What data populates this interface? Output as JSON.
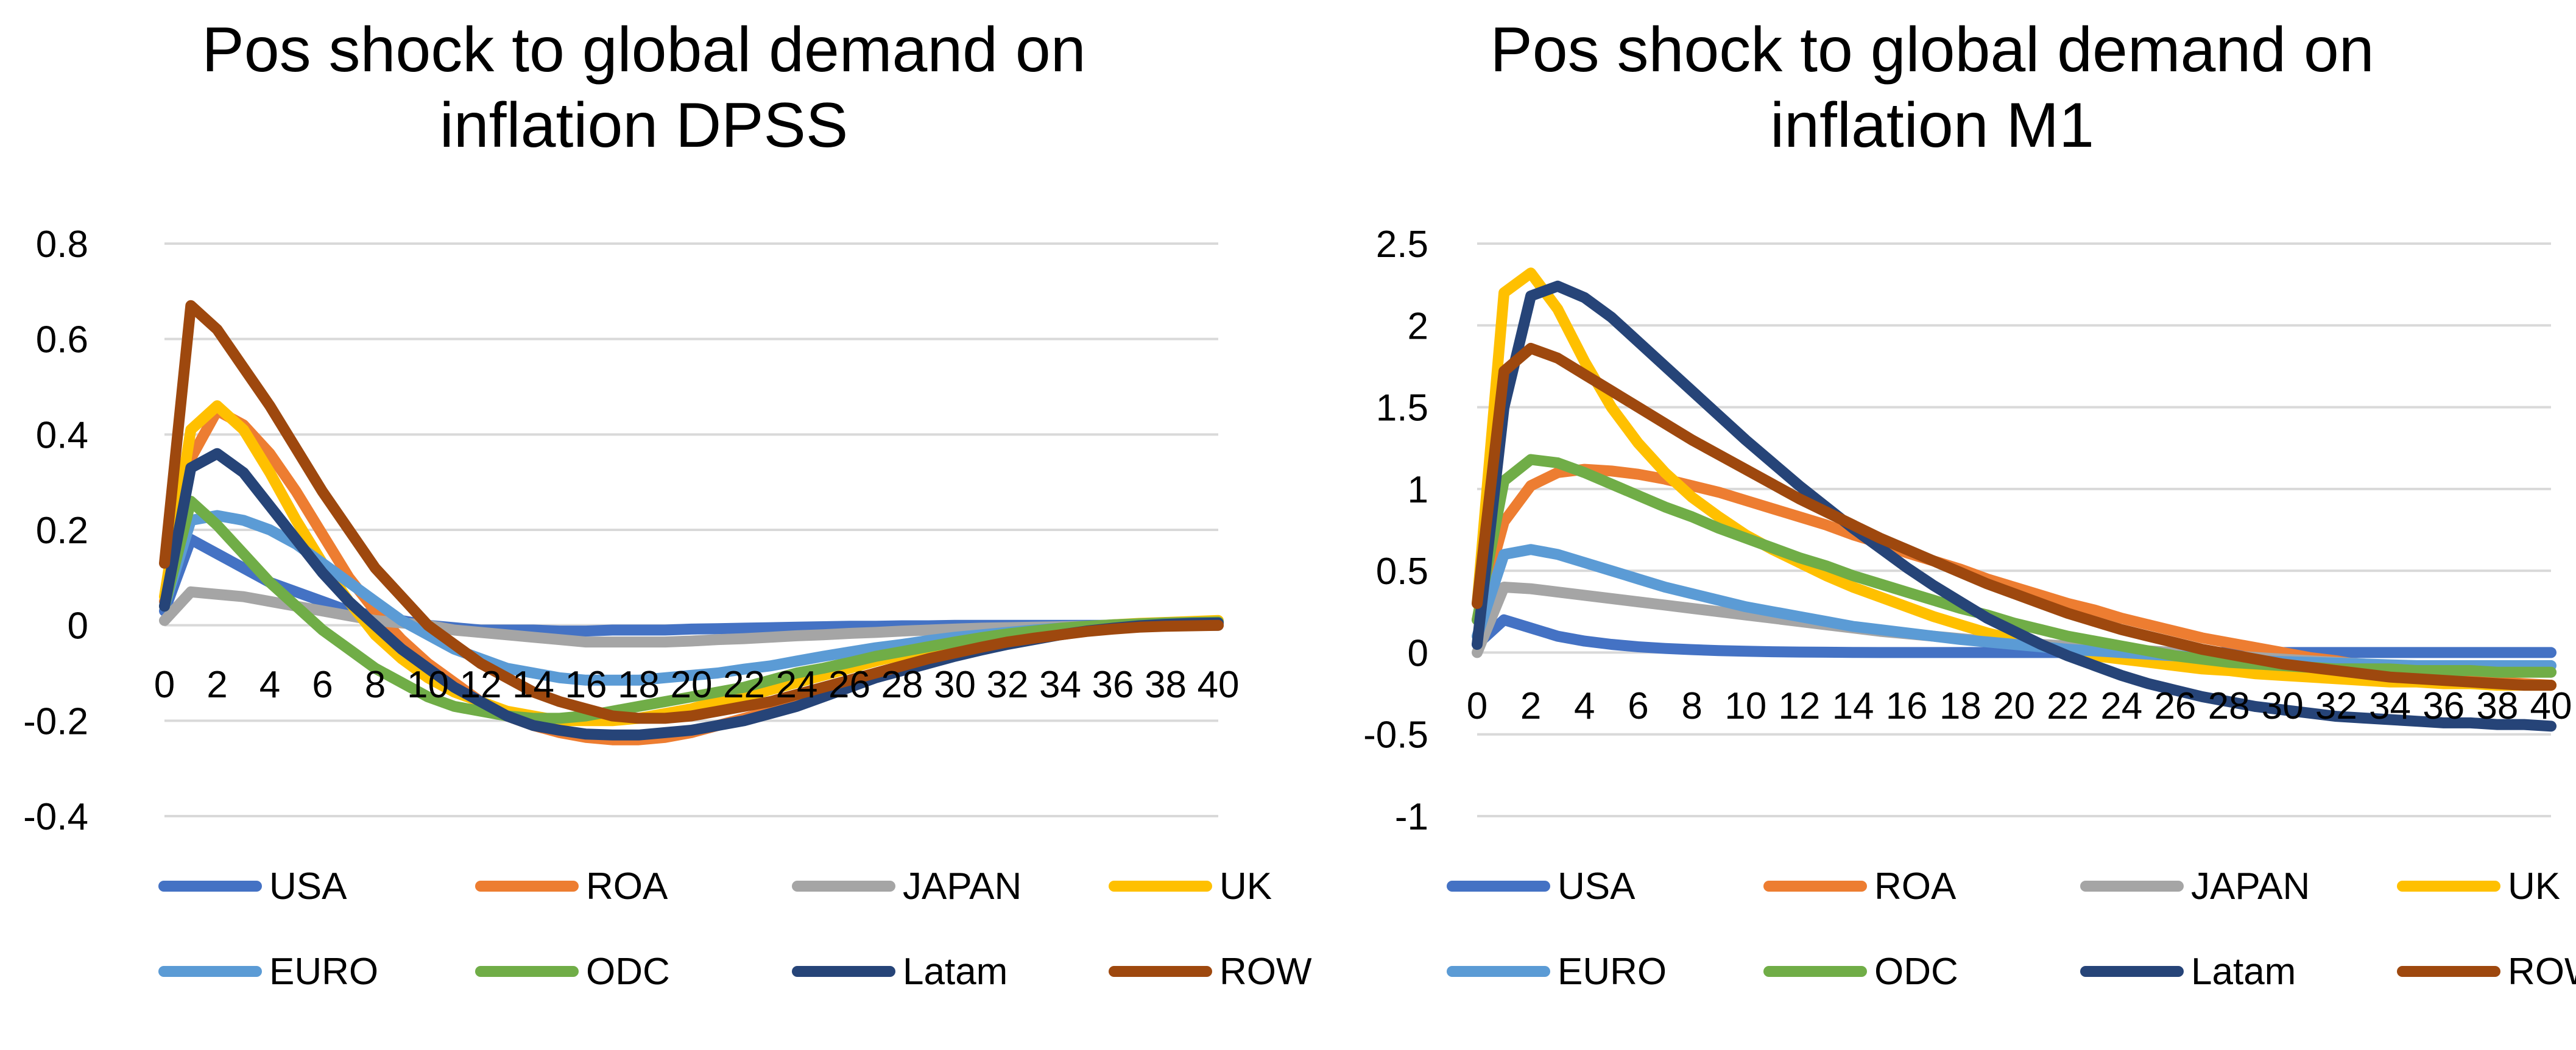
{
  "chart_data": [
    {
      "type": "line",
      "title_lines": [
        "Pos shock to global demand on",
        "inflation DPSS"
      ],
      "x": [
        0,
        1,
        2,
        3,
        4,
        5,
        6,
        7,
        8,
        9,
        10,
        11,
        12,
        13,
        14,
        15,
        16,
        17,
        18,
        19,
        20,
        21,
        22,
        23,
        24,
        25,
        26,
        27,
        28,
        29,
        30,
        31,
        32,
        33,
        34,
        35,
        36,
        37,
        38,
        39,
        40
      ],
      "x_tick_labels": [
        "0",
        "2",
        "4",
        "6",
        "8",
        "10",
        "12",
        "14",
        "16",
        "18",
        "20",
        "22",
        "24",
        "26",
        "28",
        "30",
        "32",
        "34",
        "36",
        "38",
        "40"
      ],
      "y_tick_labels": [
        "0.8",
        "0.6",
        "0.4",
        "0.2",
        "0",
        "-0.2",
        "-0.4"
      ],
      "ylim": [
        -0.4,
        0.8
      ],
      "y_step": 0.2,
      "xlabel": "",
      "ylabel": "",
      "grid": true,
      "legend_position": "bottom",
      "series": [
        {
          "name": "USA",
          "color": "#4472C4",
          "values": [
            0.03,
            0.18,
            0.15,
            0.12,
            0.09,
            0.07,
            0.05,
            0.03,
            0.02,
            0.01,
            0,
            -0.005,
            -0.01,
            -0.01,
            -0.01,
            -0.012,
            -0.012,
            -0.01,
            -0.01,
            -0.01,
            -0.008,
            -0.007,
            -0.006,
            -0.005,
            -0.004,
            -0.003,
            -0.002,
            -0.002,
            -0.001,
            -0.001,
            0,
            0,
            0,
            0,
            0,
            0,
            0,
            0,
            0,
            0,
            0
          ]
        },
        {
          "name": "ROA",
          "color": "#ED7D31",
          "values": [
            0.05,
            0.35,
            0.45,
            0.42,
            0.36,
            0.28,
            0.19,
            0.1,
            0.03,
            -0.03,
            -0.08,
            -0.12,
            -0.16,
            -0.19,
            -0.21,
            -0.225,
            -0.235,
            -0.24,
            -0.24,
            -0.235,
            -0.225,
            -0.21,
            -0.195,
            -0.18,
            -0.16,
            -0.14,
            -0.12,
            -0.1,
            -0.085,
            -0.07,
            -0.055,
            -0.045,
            -0.035,
            -0.025,
            -0.018,
            -0.01,
            -0.005,
            0,
            0.003,
            0.005,
            0.006
          ]
        },
        {
          "name": "JAPAN",
          "color": "#A5A5A5",
          "values": [
            0.01,
            0.07,
            0.065,
            0.06,
            0.05,
            0.04,
            0.03,
            0.02,
            0.01,
            0.005,
            0,
            -0.01,
            -0.015,
            -0.02,
            -0.025,
            -0.03,
            -0.035,
            -0.035,
            -0.035,
            -0.035,
            -0.033,
            -0.03,
            -0.028,
            -0.025,
            -0.022,
            -0.02,
            -0.017,
            -0.015,
            -0.012,
            -0.01,
            -0.008,
            -0.006,
            -0.005,
            -0.004,
            -0.003,
            -0.002,
            -0.001,
            0,
            0,
            0,
            0
          ]
        },
        {
          "name": "UK",
          "color": "#FFC000",
          "values": [
            0.06,
            0.41,
            0.46,
            0.41,
            0.32,
            0.22,
            0.13,
            0.05,
            -0.02,
            -0.07,
            -0.11,
            -0.14,
            -0.16,
            -0.18,
            -0.19,
            -0.2,
            -0.2,
            -0.2,
            -0.195,
            -0.185,
            -0.175,
            -0.16,
            -0.15,
            -0.135,
            -0.12,
            -0.105,
            -0.09,
            -0.075,
            -0.062,
            -0.05,
            -0.04,
            -0.03,
            -0.022,
            -0.015,
            -0.008,
            -0.003,
            0.001,
            0.004,
            0.006,
            0.008,
            0.01
          ]
        },
        {
          "name": "EURO",
          "color": "#5B9BD5",
          "values": [
            0.04,
            0.22,
            0.23,
            0.22,
            0.2,
            0.17,
            0.13,
            0.09,
            0.05,
            0.01,
            -0.02,
            -0.05,
            -0.07,
            -0.09,
            -0.1,
            -0.11,
            -0.115,
            -0.115,
            -0.115,
            -0.11,
            -0.105,
            -0.1,
            -0.092,
            -0.085,
            -0.075,
            -0.065,
            -0.056,
            -0.047,
            -0.04,
            -0.032,
            -0.025,
            -0.02,
            -0.015,
            -0.01,
            -0.006,
            -0.003,
            0,
            0.002,
            0.003,
            0.004,
            0.005
          ]
        },
        {
          "name": "ODC",
          "color": "#70AD47",
          "values": [
            0.04,
            0.26,
            0.21,
            0.15,
            0.09,
            0.04,
            -0.01,
            -0.05,
            -0.09,
            -0.12,
            -0.15,
            -0.17,
            -0.18,
            -0.19,
            -0.195,
            -0.195,
            -0.19,
            -0.18,
            -0.17,
            -0.16,
            -0.15,
            -0.14,
            -0.13,
            -0.115,
            -0.1,
            -0.09,
            -0.078,
            -0.065,
            -0.055,
            -0.045,
            -0.035,
            -0.026,
            -0.018,
            -0.012,
            -0.006,
            -0.002,
            0.001,
            0.003,
            0.005,
            0.006,
            0.007
          ]
        },
        {
          "name": "Latam",
          "color": "#264478",
          "values": [
            0.04,
            0.33,
            0.36,
            0.32,
            0.25,
            0.18,
            0.11,
            0.05,
            0,
            -0.05,
            -0.09,
            -0.13,
            -0.16,
            -0.19,
            -0.21,
            -0.22,
            -0.228,
            -0.23,
            -0.23,
            -0.225,
            -0.22,
            -0.21,
            -0.2,
            -0.185,
            -0.17,
            -0.15,
            -0.13,
            -0.11,
            -0.095,
            -0.08,
            -0.065,
            -0.052,
            -0.04,
            -0.03,
            -0.02,
            -0.012,
            -0.006,
            -0.001,
            0.002,
            0.004,
            0.005
          ]
        },
        {
          "name": "ROW",
          "color": "#9E480E",
          "values": [
            0.13,
            0.67,
            0.62,
            0.54,
            0.46,
            0.37,
            0.28,
            0.2,
            0.12,
            0.06,
            0,
            -0.04,
            -0.08,
            -0.11,
            -0.14,
            -0.16,
            -0.175,
            -0.19,
            -0.195,
            -0.195,
            -0.19,
            -0.18,
            -0.17,
            -0.16,
            -0.145,
            -0.13,
            -0.115,
            -0.1,
            -0.085,
            -0.07,
            -0.058,
            -0.046,
            -0.035,
            -0.027,
            -0.02,
            -0.013,
            -0.008,
            -0.004,
            -0.002,
            -0.001,
            0
          ]
        }
      ]
    },
    {
      "type": "line",
      "title_lines": [
        "Pos shock to global demand on",
        "inflation M1"
      ],
      "x": [
        0,
        1,
        2,
        3,
        4,
        5,
        6,
        7,
        8,
        9,
        10,
        11,
        12,
        13,
        14,
        15,
        16,
        17,
        18,
        19,
        20,
        21,
        22,
        23,
        24,
        25,
        26,
        27,
        28,
        29,
        30,
        31,
        32,
        33,
        34,
        35,
        36,
        37,
        38,
        39,
        40
      ],
      "x_tick_labels": [
        "0",
        "2",
        "4",
        "6",
        "8",
        "10",
        "12",
        "14",
        "16",
        "18",
        "20",
        "22",
        "24",
        "26",
        "28",
        "30",
        "32",
        "34",
        "36",
        "38",
        "40"
      ],
      "y_tick_labels": [
        "2.5",
        "2",
        "1.5",
        "1",
        "0.5",
        "0",
        "-0.5",
        "-1"
      ],
      "ylim": [
        -1,
        2.5
      ],
      "y_step": 0.5,
      "xlabel": "",
      "ylabel": "",
      "grid": true,
      "legend_position": "bottom",
      "series": [
        {
          "name": "USA",
          "color": "#4472C4",
          "values": [
            0.05,
            0.2,
            0.15,
            0.1,
            0.07,
            0.05,
            0.035,
            0.025,
            0.018,
            0.012,
            0.008,
            0.005,
            0.003,
            0.002,
            0.001,
            0,
            0,
            0,
            0,
            0,
            0,
            0,
            0,
            0,
            0,
            0,
            0,
            0,
            0,
            0,
            0,
            0,
            0,
            0,
            0,
            0,
            0,
            0,
            0,
            0,
            0
          ]
        },
        {
          "name": "ROA",
          "color": "#ED7D31",
          "values": [
            0.2,
            0.8,
            1.02,
            1.1,
            1.12,
            1.11,
            1.09,
            1.06,
            1.02,
            0.98,
            0.93,
            0.88,
            0.83,
            0.78,
            0.72,
            0.67,
            0.61,
            0.56,
            0.51,
            0.45,
            0.4,
            0.35,
            0.3,
            0.26,
            0.21,
            0.17,
            0.13,
            0.09,
            0.06,
            0.03,
            0,
            -0.03,
            -0.05,
            -0.08,
            -0.1,
            -0.12,
            -0.14,
            -0.16,
            -0.18,
            -0.19,
            -0.2
          ]
        },
        {
          "name": "JAPAN",
          "color": "#A5A5A5",
          "values": [
            0,
            0.4,
            0.39,
            0.37,
            0.35,
            0.33,
            0.31,
            0.29,
            0.27,
            0.25,
            0.23,
            0.21,
            0.19,
            0.17,
            0.15,
            0.13,
            0.115,
            0.1,
            0.085,
            0.07,
            0.06,
            0.05,
            0.04,
            0.03,
            0.02,
            0.01,
            0,
            -0.01,
            -0.02,
            -0.03,
            -0.04,
            -0.05,
            -0.06,
            -0.07,
            -0.08,
            -0.09,
            -0.1,
            -0.1,
            -0.11,
            -0.11,
            -0.12
          ]
        },
        {
          "name": "UK",
          "color": "#FFC000",
          "values": [
            0.3,
            2.2,
            2.32,
            2.1,
            1.78,
            1.5,
            1.28,
            1.1,
            0.95,
            0.83,
            0.72,
            0.63,
            0.55,
            0.47,
            0.4,
            0.34,
            0.28,
            0.22,
            0.17,
            0.12,
            0.08,
            0.04,
            0.01,
            -0.02,
            -0.04,
            -0.06,
            -0.08,
            -0.1,
            -0.11,
            -0.13,
            -0.14,
            -0.15,
            -0.16,
            -0.17,
            -0.18,
            -0.18,
            -0.19,
            -0.19,
            -0.2,
            -0.2,
            -0.2
          ]
        },
        {
          "name": "EURO",
          "color": "#5B9BD5",
          "values": [
            0.1,
            0.6,
            0.63,
            0.6,
            0.55,
            0.5,
            0.45,
            0.4,
            0.36,
            0.32,
            0.28,
            0.25,
            0.22,
            0.19,
            0.16,
            0.14,
            0.12,
            0.1,
            0.08,
            0.065,
            0.05,
            0.035,
            0.02,
            0.01,
            0,
            -0.01,
            -0.02,
            -0.03,
            -0.04,
            -0.05,
            -0.055,
            -0.06,
            -0.065,
            -0.07,
            -0.075,
            -0.08,
            -0.08,
            -0.08,
            -0.08,
            -0.08,
            -0.08
          ]
        },
        {
          "name": "ODC",
          "color": "#70AD47",
          "values": [
            0.2,
            1.05,
            1.18,
            1.16,
            1.1,
            1.03,
            0.96,
            0.89,
            0.83,
            0.76,
            0.7,
            0.64,
            0.58,
            0.53,
            0.47,
            0.42,
            0.37,
            0.32,
            0.27,
            0.23,
            0.18,
            0.14,
            0.1,
            0.07,
            0.04,
            0.01,
            -0.02,
            -0.04,
            -0.06,
            -0.07,
            -0.08,
            -0.09,
            -0.1,
            -0.1,
            -0.1,
            -0.11,
            -0.11,
            -0.11,
            -0.12,
            -0.12,
            -0.12
          ]
        },
        {
          "name": "Latam",
          "color": "#264478",
          "values": [
            0.05,
            1.5,
            2.18,
            2.24,
            2.17,
            2.05,
            1.9,
            1.75,
            1.6,
            1.45,
            1.3,
            1.16,
            1.02,
            0.89,
            0.76,
            0.64,
            0.52,
            0.41,
            0.31,
            0.21,
            0.13,
            0.05,
            -0.02,
            -0.08,
            -0.14,
            -0.19,
            -0.23,
            -0.27,
            -0.3,
            -0.33,
            -0.35,
            -0.37,
            -0.39,
            -0.4,
            -0.41,
            -0.42,
            -0.43,
            -0.43,
            -0.44,
            -0.44,
            -0.45
          ]
        },
        {
          "name": "ROW",
          "color": "#9E480E",
          "values": [
            0.3,
            1.72,
            1.86,
            1.8,
            1.7,
            1.6,
            1.5,
            1.4,
            1.3,
            1.21,
            1.12,
            1.03,
            0.94,
            0.86,
            0.78,
            0.7,
            0.63,
            0.56,
            0.49,
            0.42,
            0.36,
            0.3,
            0.24,
            0.19,
            0.14,
            0.1,
            0.06,
            0.02,
            -0.01,
            -0.04,
            -0.07,
            -0.09,
            -0.11,
            -0.13,
            -0.15,
            -0.16,
            -0.17,
            -0.18,
            -0.19,
            -0.2,
            -0.2
          ]
        }
      ]
    }
  ]
}
